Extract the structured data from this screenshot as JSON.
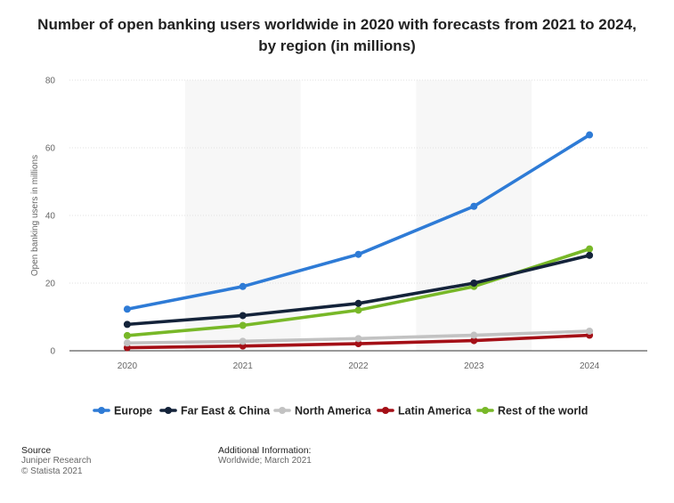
{
  "chart_data": {
    "type": "line",
    "title": "Number of open banking users worldwide in 2020 with forecasts from 2021 to 2024, by region (in millions)",
    "xlabel": "",
    "ylabel": "Open banking users in millions",
    "categories": [
      "2020",
      "2021",
      "2022",
      "2023",
      "2024"
    ],
    "ylim": [
      0,
      80
    ],
    "yticks": [
      0,
      20,
      40,
      60,
      80
    ],
    "grid": true,
    "legend_position": "bottom",
    "series": [
      {
        "name": "Europe",
        "color": "#2e7bd6",
        "values": [
          12.3,
          19.0,
          28.5,
          42.7,
          63.8
        ]
      },
      {
        "name": "Far East & China",
        "color": "#14233a",
        "values": [
          7.8,
          10.4,
          14.0,
          20.0,
          28.2
        ]
      },
      {
        "name": "North America",
        "color": "#c2c2c2",
        "values": [
          2.3,
          2.8,
          3.6,
          4.6,
          5.8
        ]
      },
      {
        "name": "Latin America",
        "color": "#a40f16",
        "values": [
          0.9,
          1.4,
          2.1,
          3.0,
          4.6
        ]
      },
      {
        "name": "Rest of the world",
        "color": "#78b828",
        "values": [
          4.5,
          7.5,
          12.0,
          19.0,
          30.1
        ]
      }
    ]
  },
  "footer": {
    "source_heading": "Source",
    "source_lines": [
      "Juniper Research",
      "© Statista 2021"
    ],
    "info_heading": "Additional Information:",
    "info_text": "Worldwide; March 2021"
  }
}
